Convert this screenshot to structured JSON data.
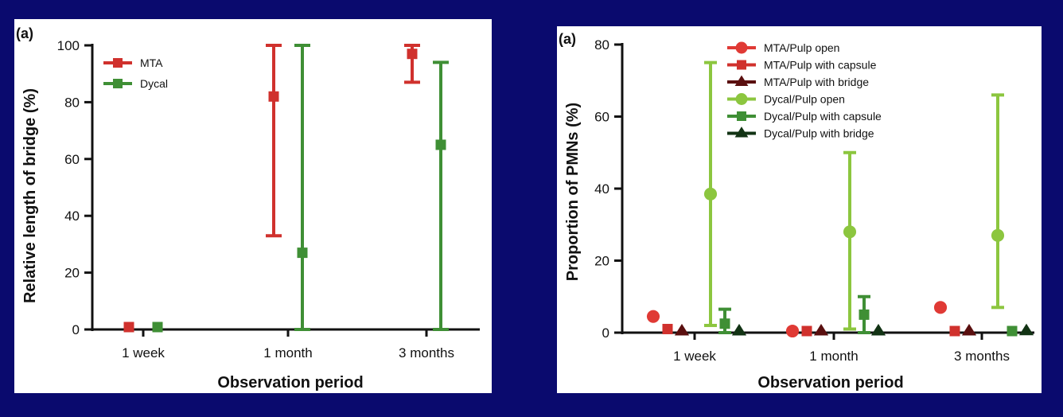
{
  "colors": {
    "background": "#0a0a6e",
    "red": "#d0312d",
    "green": "#3f8f35",
    "lightgreen": "#8cc63f",
    "darkred": "#5a0f0f",
    "darkgreen": "#123314"
  },
  "chart_data": [
    {
      "type": "scatter",
      "panel_label": "(a)",
      "xlabel": "Observation period",
      "ylabel": "Relative length of bridge (%)",
      "categories": [
        "1 week",
        "1 month",
        "3 months"
      ],
      "ylim": [
        0,
        100
      ],
      "yticks": [
        "0",
        "20",
        "40",
        "60",
        "80",
        "100"
      ],
      "legend_position": "top-left",
      "series": [
        {
          "name": "MTA",
          "marker": "square",
          "color": "#d0312d",
          "points": [
            {
              "x": "1 week",
              "y": 0,
              "low": 0,
              "high": 0
            },
            {
              "x": "1 month",
              "y": 82,
              "low": 33,
              "high": 100
            },
            {
              "x": "3 months",
              "y": 97,
              "low": 87,
              "high": 100
            }
          ]
        },
        {
          "name": "Dycal",
          "marker": "square",
          "color": "#3f8f35",
          "points": [
            {
              "x": "1 week",
              "y": 0,
              "low": 0,
              "high": 0
            },
            {
              "x": "1 month",
              "y": 27,
              "low": 0,
              "high": 100
            },
            {
              "x": "3 months",
              "y": 65,
              "low": 0,
              "high": 94
            }
          ]
        }
      ]
    },
    {
      "type": "scatter",
      "panel_label": "(a)",
      "xlabel": "Observation period",
      "ylabel": "Proportion of PMNs (%)",
      "categories": [
        "1 week",
        "1 month",
        "3 months"
      ],
      "ylim": [
        0,
        80
      ],
      "yticks": [
        "0",
        "20",
        "40",
        "60",
        "80"
      ],
      "legend_position": "top-center",
      "series": [
        {
          "name": "MTA/Pulp open",
          "marker": "circle",
          "color": "#e03a35",
          "points": [
            {
              "x": "1 week",
              "y": 4.5,
              "low": 4.5,
              "high": 4.5
            },
            {
              "x": "1 month",
              "y": 0,
              "low": 0,
              "high": 0
            },
            {
              "x": "3 months",
              "y": 7,
              "low": 7,
              "high": 7
            }
          ]
        },
        {
          "name": "MTA/Pulp with capsule",
          "marker": "square",
          "color": "#d0312d",
          "points": [
            {
              "x": "1 week",
              "y": 1,
              "low": 1,
              "high": 1
            },
            {
              "x": "1 month",
              "y": 0,
              "low": 0,
              "high": 0
            },
            {
              "x": "3 months",
              "y": 0,
              "low": 0,
              "high": 0
            }
          ]
        },
        {
          "name": "MTA/Pulp with bridge",
          "marker": "triangle",
          "color": "#5a0f0f",
          "points": [
            {
              "x": "1 week",
              "y": 0,
              "low": 0,
              "high": 0
            },
            {
              "x": "1 month",
              "y": 0,
              "low": 0,
              "high": 0
            },
            {
              "x": "3 months",
              "y": 0,
              "low": 0,
              "high": 0
            }
          ]
        },
        {
          "name": "Dycal/Pulp open",
          "marker": "circle",
          "color": "#8cc63f",
          "points": [
            {
              "x": "1 week",
              "y": 38.5,
              "low": 2,
              "high": 75
            },
            {
              "x": "1 month",
              "y": 28,
              "low": 1,
              "high": 50
            },
            {
              "x": "3 months",
              "y": 27,
              "low": 7,
              "high": 66
            }
          ]
        },
        {
          "name": "Dycal/Pulp with capsule",
          "marker": "square",
          "color": "#3f8f35",
          "points": [
            {
              "x": "1 week",
              "y": 2.5,
              "low": 0,
              "high": 6.5
            },
            {
              "x": "1 month",
              "y": 5,
              "low": 0,
              "high": 10
            },
            {
              "x": "3 months",
              "y": 0,
              "low": 0,
              "high": 0
            }
          ]
        },
        {
          "name": "Dycal/Pulp with bridge",
          "marker": "triangle",
          "color": "#123314",
          "points": [
            {
              "x": "1 week",
              "y": 0,
              "low": 0,
              "high": 0
            },
            {
              "x": "1 month",
              "y": 0,
              "low": 0,
              "high": 0
            },
            {
              "x": "3 months",
              "y": 0.5,
              "low": 0.5,
              "high": 0.5
            }
          ]
        }
      ]
    }
  ]
}
